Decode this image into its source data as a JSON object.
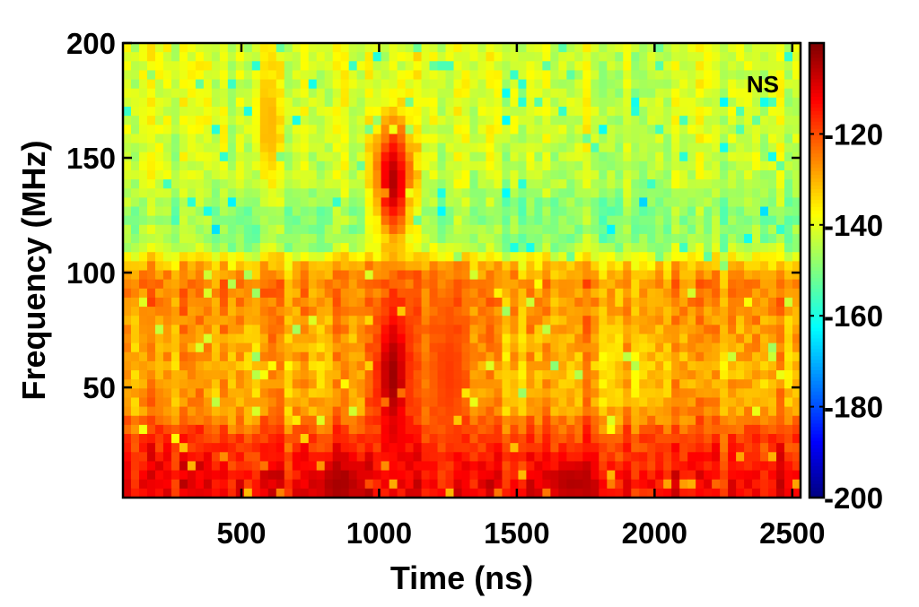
{
  "chart_data": {
    "type": "heatmap",
    "title": "",
    "annotation": "NS",
    "xlabel": "Time (ns)",
    "ylabel": "Frequency (MHz)",
    "xlim": [
      70,
      2530
    ],
    "ylim": [
      2,
      200
    ],
    "x_ticks": [
      500,
      1000,
      1500,
      2000,
      2500
    ],
    "y_ticks": [
      50,
      100,
      150,
      200
    ],
    "colorbar": {
      "range": [
        -200,
        -100
      ],
      "ticks": [
        -120,
        -140,
        -160,
        -180,
        -200
      ],
      "colormap": "jet"
    },
    "frequency_profile": [
      {
        "f": 2,
        "v": -112
      },
      {
        "f": 15,
        "v": -114
      },
      {
        "f": 28,
        "v": -119
      },
      {
        "f": 40,
        "v": -128
      },
      {
        "f": 55,
        "v": -130
      },
      {
        "f": 70,
        "v": -129
      },
      {
        "f": 85,
        "v": -127
      },
      {
        "f": 97,
        "v": -126
      },
      {
        "f": 104,
        "v": -133
      },
      {
        "f": 112,
        "v": -147
      },
      {
        "f": 125,
        "v": -149
      },
      {
        "f": 140,
        "v": -144
      },
      {
        "f": 160,
        "v": -142
      },
      {
        "f": 180,
        "v": -142
      },
      {
        "f": 200,
        "v": -141
      }
    ],
    "hotspots": [
      {
        "t": 1050,
        "f": 140,
        "v": -105,
        "st": 70,
        "sf": 28
      },
      {
        "t": 1050,
        "f": 55,
        "v": -103,
        "st": 70,
        "sf": 35
      },
      {
        "t": 1250,
        "f": 55,
        "v": -118,
        "st": 90,
        "sf": 40
      },
      {
        "t": 850,
        "f": 8,
        "v": -104,
        "st": 100,
        "sf": 10
      },
      {
        "t": 1700,
        "f": 8,
        "v": -105,
        "st": 110,
        "sf": 10
      },
      {
        "t": 600,
        "f": 165,
        "v": -130,
        "st": 50,
        "sf": 25
      }
    ]
  }
}
